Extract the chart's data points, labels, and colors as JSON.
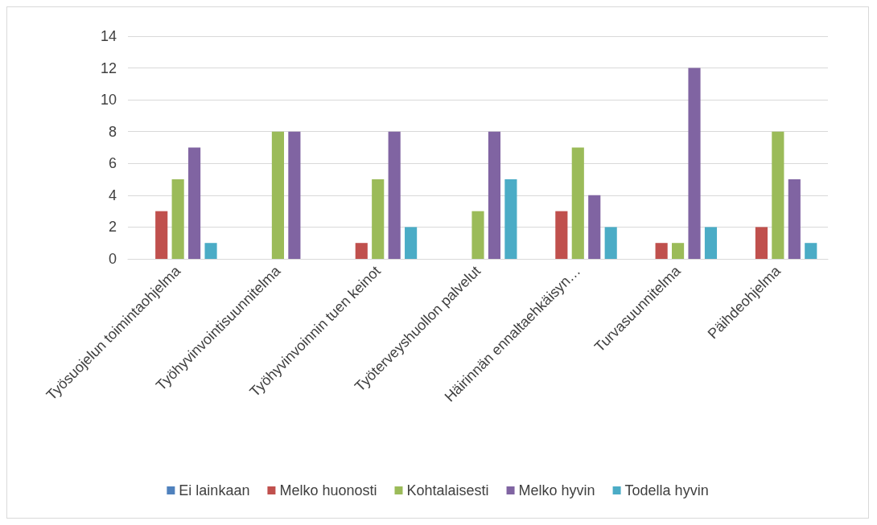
{
  "chart_data": {
    "type": "bar",
    "categories": [
      "Työsuojelun toimintaohjelma",
      "Työhyvinvointisuunnitelma",
      "Työhyvinvoinnin tuen keinot",
      "Työterveyshuollon palvelut",
      "Häirinnän ennaltaehkäisyn…",
      "Turvasuunnitelma",
      "Päihdeohjelma"
    ],
    "series": [
      {
        "name": "Ei lainkaan",
        "color": "#4f81bd",
        "values": [
          0,
          0,
          0,
          0,
          0,
          0,
          0
        ]
      },
      {
        "name": "Melko huonosti",
        "color": "#c0504d",
        "values": [
          3,
          0,
          1,
          0,
          3,
          1,
          2
        ]
      },
      {
        "name": "Kohtalaisesti",
        "color": "#9bbb59",
        "values": [
          5,
          8,
          5,
          3,
          7,
          1,
          8
        ]
      },
      {
        "name": "Melko hyvin",
        "color": "#8064a2",
        "values": [
          7,
          8,
          8,
          8,
          4,
          12,
          5
        ]
      },
      {
        "name": "Todella hyvin",
        "color": "#4bacc6",
        "values": [
          1,
          0,
          2,
          5,
          2,
          2,
          1
        ]
      }
    ],
    "ylim": [
      0,
      14
    ],
    "yticks": [
      0,
      2,
      4,
      6,
      8,
      10,
      12,
      14
    ],
    "grid": "y",
    "legend": "bottom"
  }
}
